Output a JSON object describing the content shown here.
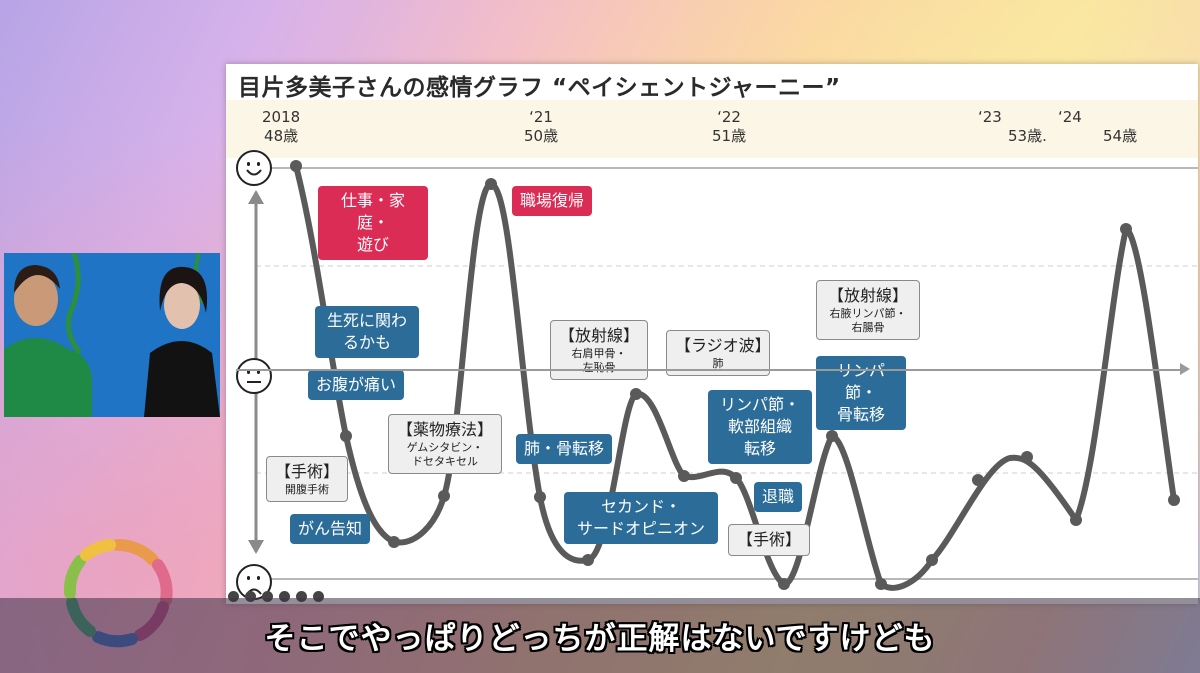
{
  "slide": {
    "title": "目片多美子さんの感情グラフ “ペイシェントジャーニー”",
    "years": [
      {
        "y": "2018",
        "age": "48歳"
      },
      {
        "y": "‘21",
        "age": "50歳"
      },
      {
        "y": "‘22",
        "age": "51歳"
      },
      {
        "y": "‘23",
        "age": "53歳."
      },
      {
        "y": "‘24",
        "age": "54歳"
      }
    ],
    "events": {
      "e1": "仕事・家庭・\n遊び",
      "e2": "職場復帰",
      "e3": "生死に関わ\nるかも",
      "e4": "お腹が痛い",
      "e5_title": "【放射線】",
      "e5_sub": "右肩甲骨・\n左恥骨",
      "e6_title": "【ラジオ波】",
      "e6_sub": "肺",
      "e7_title": "【放射線】",
      "e7_sub": "右腋リンパ節・\n右腸骨",
      "e8": "リンパ節・\n骨転移",
      "e9": "リンパ節・\n軟部組織\n転移",
      "e10_title": "【薬物療法】",
      "e10_sub": "ゲムシタビン・\nドセタキセル",
      "e11": "肺・骨転移",
      "e12_title": "【手術】",
      "e12_sub": "開腹手術",
      "e13": "がん告知",
      "e14": "セカンド・\nサードオピニオン",
      "e15": "退職",
      "e16": "【手術】"
    }
  },
  "subtitle": "そこでやっぱりどっちが正解はないですけども",
  "colors": {
    "red": "#db2c55",
    "blue": "#2b6d98",
    "curve": "#5a5a5a"
  }
}
